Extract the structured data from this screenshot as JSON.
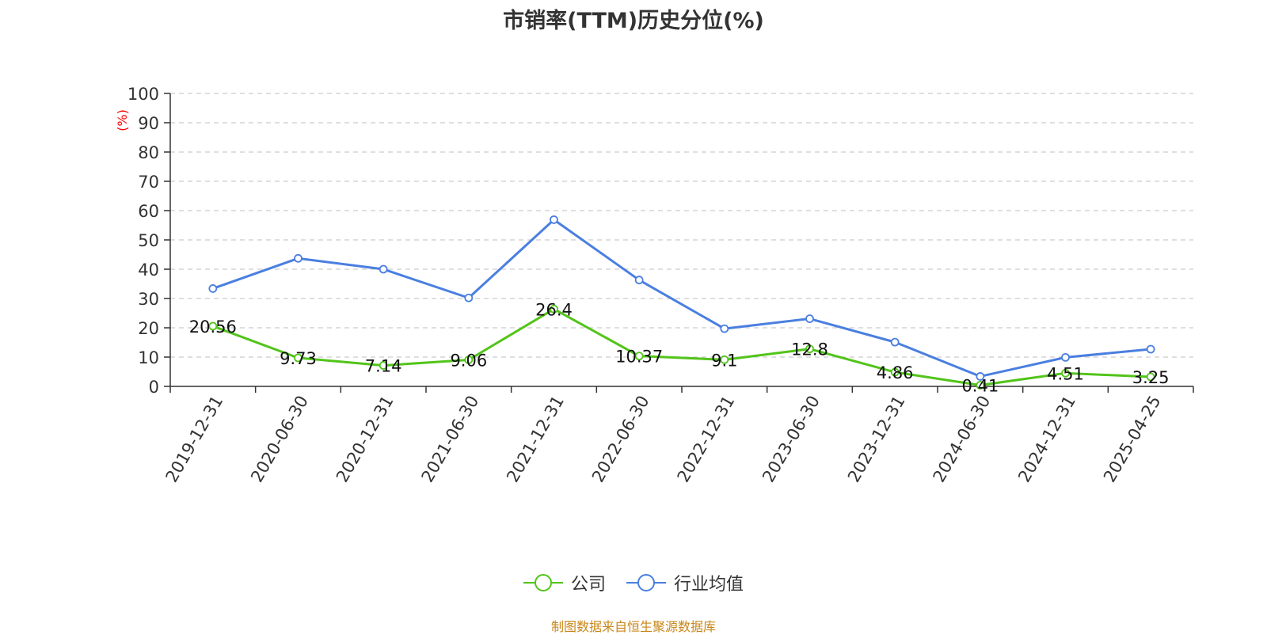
{
  "title": "市销率(TTM)历史分位(%)",
  "source": "制图数据来自恒生聚源数据库",
  "chart_data": {
    "type": "line",
    "title": "市销率(TTM)历史分位(%)",
    "ylabel": "(%)",
    "ylim": [
      0,
      100
    ],
    "yticks": [
      0,
      10,
      20,
      30,
      40,
      50,
      60,
      70,
      80,
      90,
      100
    ],
    "grid": true,
    "legend_position": "bottom-center",
    "categories": [
      "2019-12-31",
      "2020-06-30",
      "2020-12-31",
      "2021-06-30",
      "2021-12-31",
      "2022-06-30",
      "2022-12-31",
      "2023-06-30",
      "2023-12-31",
      "2024-06-30",
      "2024-12-31",
      "2025-04-25"
    ],
    "series": [
      {
        "name": "公司",
        "color": "#52c41a",
        "show_labels": true,
        "values": [
          20.56,
          9.73,
          7.14,
          9.06,
          26.4,
          10.37,
          9.1,
          12.8,
          4.86,
          0.41,
          4.51,
          3.25
        ]
      },
      {
        "name": "行业均值",
        "color": "#4a7fe0",
        "show_labels": false,
        "values": [
          33.4,
          43.7,
          40.0,
          30.2,
          56.9,
          36.3,
          19.7,
          23.1,
          15.1,
          3.4,
          9.9,
          12.7
        ]
      }
    ]
  }
}
